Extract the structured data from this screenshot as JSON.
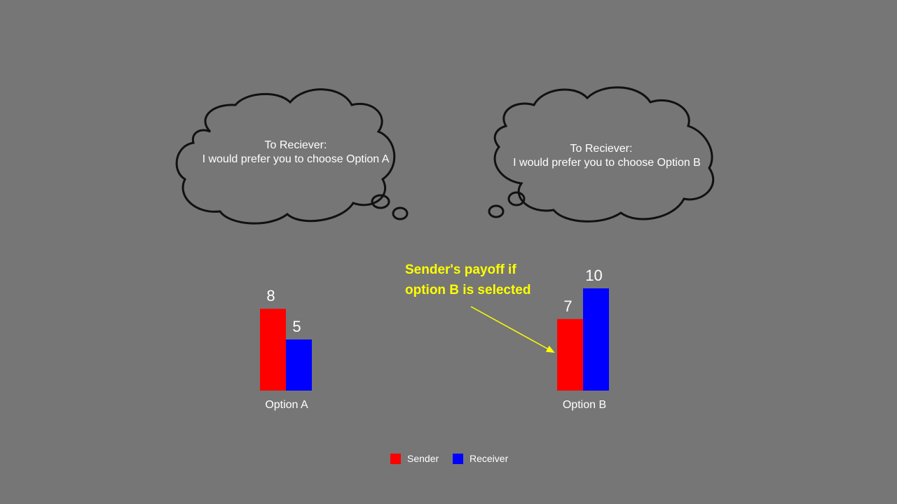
{
  "clouds": [
    {
      "line1": "To Reciever:",
      "line2": "I would prefer you to choose Option A"
    },
    {
      "line1": "To Reciever:",
      "line2": "I would prefer you to choose Option B"
    }
  ],
  "annotation": {
    "line1": "Sender's payoff if",
    "line2": "option B is selected",
    "color": "#ffff00"
  },
  "chart_data": {
    "type": "bar",
    "categories": [
      "Option A",
      "Option B"
    ],
    "series": [
      {
        "name": "Sender",
        "values": [
          8,
          7
        ],
        "color": "#ff0000"
      },
      {
        "name": "Receiver",
        "values": [
          5,
          10
        ],
        "color": "#0000ff"
      }
    ],
    "title": "",
    "xlabel": "",
    "ylabel": "",
    "ylim": [
      0,
      10
    ],
    "grid": false,
    "legend_placement": "bottom"
  },
  "colors": {
    "background": "#767676",
    "sender": "#ff0000",
    "receiver": "#0000ff"
  }
}
